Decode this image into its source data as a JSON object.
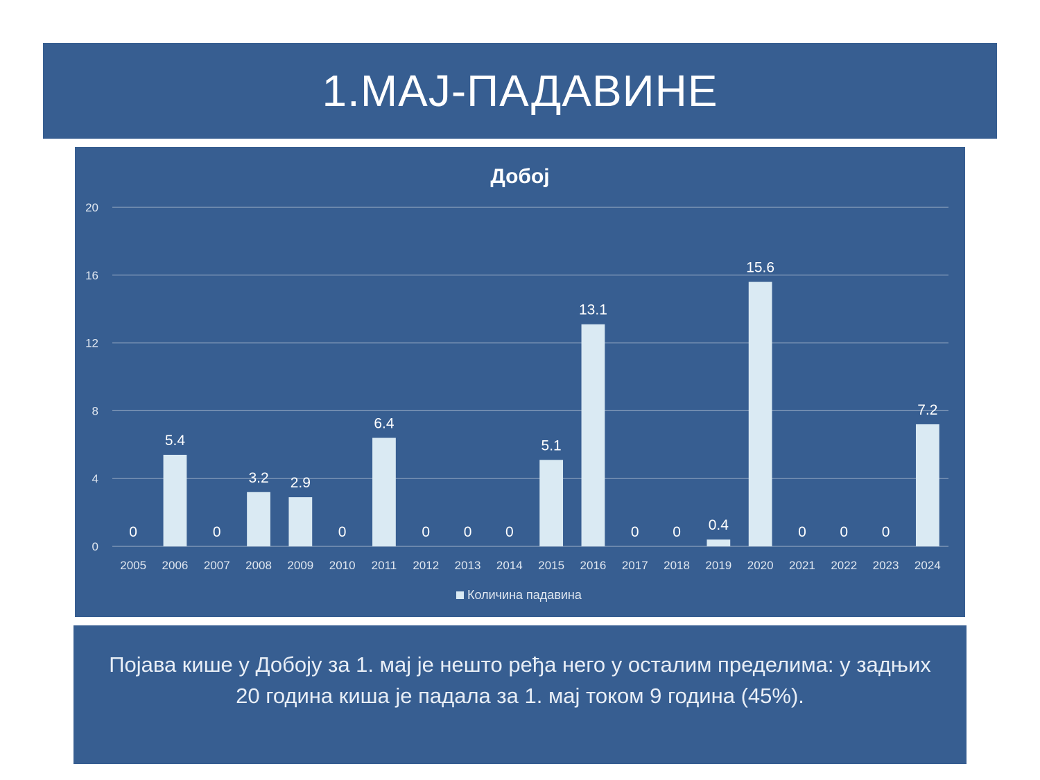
{
  "slide": {
    "title": "1.МАЈ-ПАДАВИНЕ",
    "description": "Појава кише у Добоју за 1. мај је нешто ређа него у осталим пределима: у задњих 20 година киша је падала за 1. мај током 9 година (45%)."
  },
  "chart_data": {
    "type": "bar",
    "title": "Добој",
    "categories": [
      "2005",
      "2006",
      "2007",
      "2008",
      "2009",
      "2010",
      "2011",
      "2012",
      "2013",
      "2014",
      "2015",
      "2016",
      "2017",
      "2018",
      "2019",
      "2020",
      "2021",
      "2022",
      "2023",
      "2024"
    ],
    "series": [
      {
        "name": "Количина падавина",
        "values": [
          0,
          5.4,
          0,
          3.2,
          2.9,
          0,
          6.4,
          0,
          0,
          0,
          5.1,
          13.1,
          0,
          0,
          0.4,
          15.6,
          0,
          0,
          0,
          7.2
        ]
      }
    ],
    "yticks": [
      "0",
      "4",
      "8",
      "12",
      "16",
      "20"
    ],
    "ylim": [
      0,
      20
    ],
    "grid": true,
    "legend": "bottom",
    "colors": {
      "bar": "#daeaf3",
      "background": "#375e91",
      "grid": "#8aa0bd",
      "text": "#ffffff",
      "tick_text": "#e0e7f0"
    }
  }
}
